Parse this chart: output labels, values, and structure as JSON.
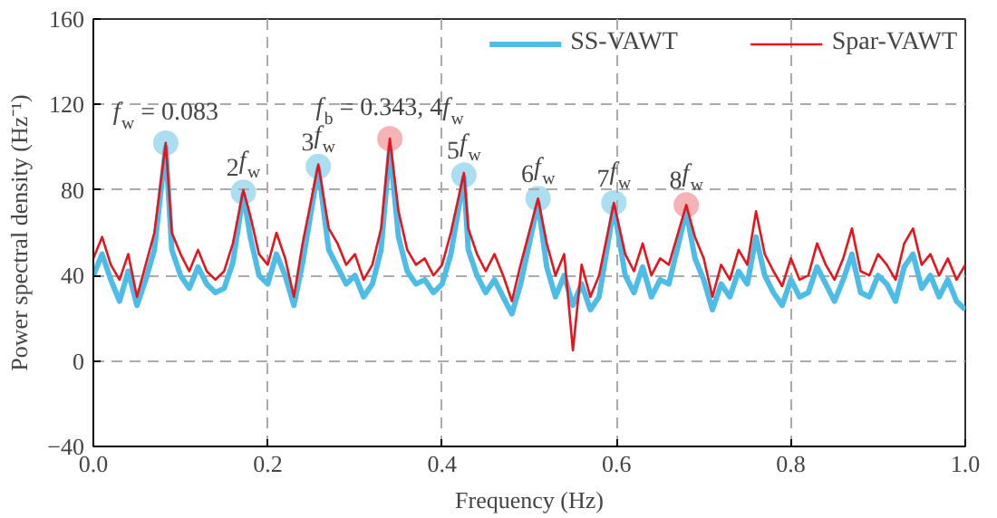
{
  "chart_data": {
    "type": "line",
    "xlabel": "Frequency (Hz)",
    "ylabel": "Power spectral density (Hz⁻¹)",
    "xlim": [
      0,
      1
    ],
    "ylim": [
      -40,
      160
    ],
    "xticks": [
      {
        "value": 0,
        "label": "0.0"
      },
      {
        "value": 0.2,
        "label": "0.2"
      },
      {
        "value": 0.4,
        "label": "0.4"
      },
      {
        "value": 0.6,
        "label": "0.6"
      },
      {
        "value": 0.8,
        "label": "0.8"
      },
      {
        "value": 1,
        "label": "1.0"
      }
    ],
    "yticks": [
      -40,
      0,
      40,
      80,
      120,
      160
    ],
    "grid": true,
    "legend": "top right",
    "line_style": "solid",
    "x": [
      0,
      0.01,
      0.02,
      0.03,
      0.04,
      0.05,
      0.06,
      0.07,
      0.083,
      0.09,
      0.1,
      0.11,
      0.12,
      0.13,
      0.14,
      0.15,
      0.16,
      0.172,
      0.18,
      0.19,
      0.2,
      0.21,
      0.22,
      0.23,
      0.24,
      0.258,
      0.27,
      0.28,
      0.29,
      0.3,
      0.31,
      0.32,
      0.33,
      0.34,
      0.35,
      0.36,
      0.37,
      0.38,
      0.39,
      0.4,
      0.41,
      0.425,
      0.43,
      0.44,
      0.45,
      0.46,
      0.47,
      0.48,
      0.49,
      0.51,
      0.52,
      0.53,
      0.54,
      0.55,
      0.56,
      0.57,
      0.58,
      0.597,
      0.61,
      0.62,
      0.63,
      0.64,
      0.65,
      0.66,
      0.68,
      0.69,
      0.7,
      0.71,
      0.72,
      0.73,
      0.74,
      0.75,
      0.76,
      0.77,
      0.78,
      0.79,
      0.8,
      0.81,
      0.82,
      0.83,
      0.84,
      0.85,
      0.86,
      0.87,
      0.88,
      0.89,
      0.9,
      0.91,
      0.92,
      0.93,
      0.94,
      0.95,
      0.96,
      0.97,
      0.98,
      0.99,
      1
    ],
    "series": [
      {
        "name": "SS-VAWT",
        "color": "#4dbde8",
        "values": [
          40,
          50,
          38,
          28,
          42,
          26,
          38,
          52,
          100,
          52,
          40,
          34,
          44,
          36,
          32,
          34,
          46,
          78,
          58,
          40,
          36,
          50,
          40,
          26,
          46,
          90,
          52,
          44,
          36,
          40,
          30,
          36,
          52,
          100,
          58,
          42,
          36,
          38,
          32,
          36,
          50,
          86,
          52,
          40,
          32,
          38,
          30,
          22,
          36,
          74,
          44,
          30,
          40,
          26,
          36,
          24,
          30,
          72,
          40,
          32,
          44,
          30,
          38,
          36,
          70,
          48,
          38,
          24,
          36,
          30,
          42,
          36,
          58,
          40,
          32,
          26,
          38,
          30,
          32,
          44,
          36,
          28,
          38,
          50,
          32,
          30,
          40,
          36,
          28,
          44,
          50,
          34,
          40,
          30,
          38,
          28,
          24
        ]
      },
      {
        "name": "Spar-VAWT",
        "color": "#e8141c",
        "values": [
          48,
          58,
          45,
          38,
          50,
          30,
          45,
          60,
          102,
          60,
          50,
          42,
          52,
          42,
          38,
          42,
          55,
          80,
          68,
          50,
          45,
          60,
          48,
          30,
          55,
          92,
          62,
          55,
          45,
          50,
          38,
          45,
          62,
          104,
          70,
          52,
          45,
          48,
          40,
          45,
          60,
          88,
          62,
          50,
          42,
          50,
          40,
          28,
          45,
          76,
          55,
          40,
          50,
          5,
          45,
          30,
          40,
          74,
          50,
          42,
          55,
          40,
          48,
          45,
          73,
          58,
          48,
          30,
          45,
          38,
          52,
          45,
          70,
          50,
          42,
          35,
          48,
          38,
          40,
          55,
          45,
          38,
          48,
          62,
          42,
          40,
          50,
          45,
          38,
          55,
          62,
          45,
          50,
          40,
          48,
          38,
          45
        ]
      },
      {
        "type": "scatter",
        "marker": "circle",
        "x": [
          0.083,
          0.172,
          0.258,
          0.34,
          0.425,
          0.51,
          0.597,
          0.68
        ],
        "values": [
          102,
          79,
          91,
          104,
          87,
          76,
          74,
          73
        ],
        "colors": [
          "#9ed8f0",
          "#9ed8f0",
          "#9ed8f0",
          "#f4a6a8",
          "#9ed8f0",
          "#9ed8f0",
          "#9ed8f0",
          "#f4a6a8"
        ]
      }
    ],
    "annotations": [
      {
        "text": "f$_{w}$ = 0.083",
        "x": 0.083,
        "y": 102
      },
      {
        "text": "2f$_{w}$",
        "x": 0.172,
        "y": 79
      },
      {
        "text": "3f$_{w}$",
        "x": 0.258,
        "y": 91
      },
      {
        "text": "f$_{b}$ = 0.343, 4f$_{w}$",
        "x": 0.34,
        "y": 104
      },
      {
        "text": "5f$_{w}$",
        "x": 0.425,
        "y": 87
      },
      {
        "text": "6f$_{w}$",
        "x": 0.51,
        "y": 76
      },
      {
        "text": "7f$_{w}$",
        "x": 0.597,
        "y": 74
      },
      {
        "text": "8f$_{w}$",
        "x": 0.68,
        "y": 73
      }
    ]
  }
}
